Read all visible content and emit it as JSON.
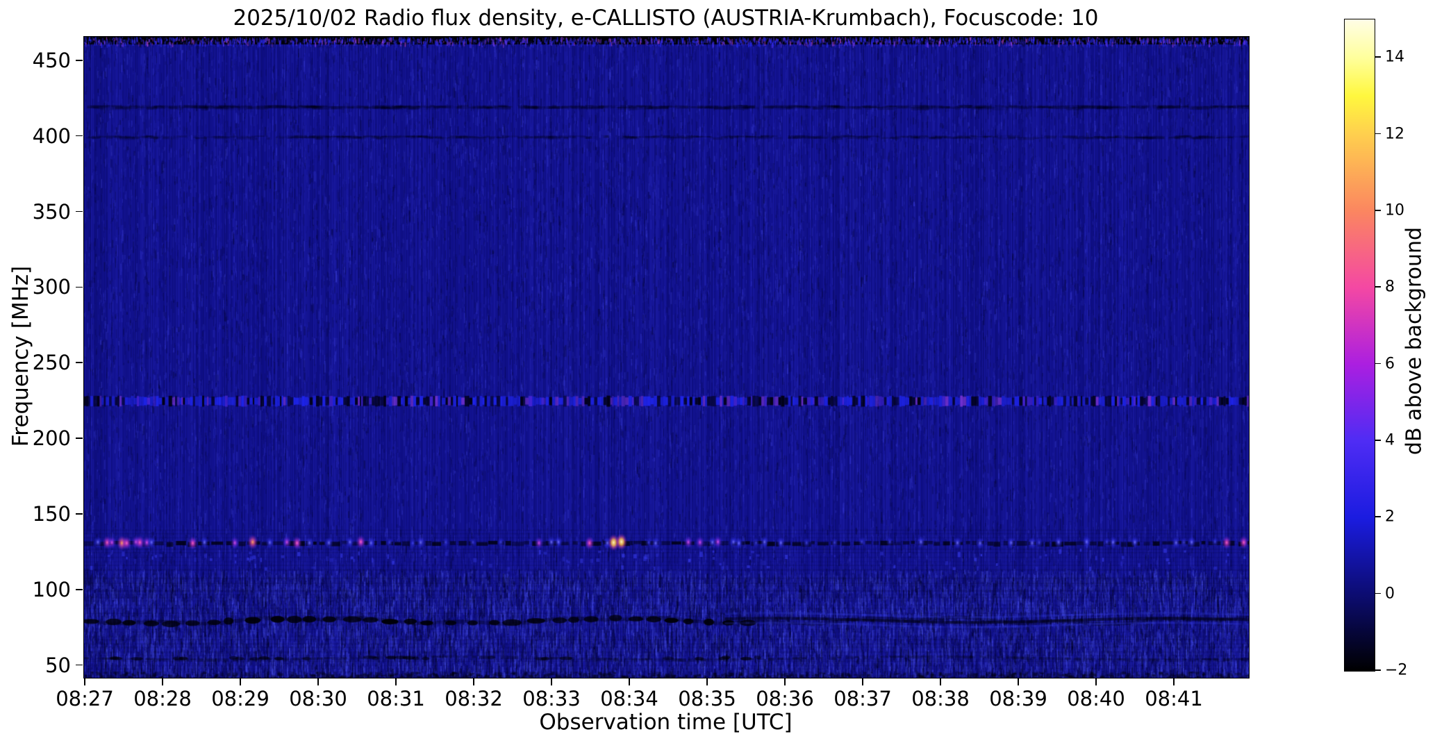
{
  "title": "2025/10/02  Radio flux density, e-CALLISTO (AUSTRIA-Krumbach), Focuscode: 10",
  "chart_data": {
    "type": "heatmap",
    "subtype": "radio-spectrogram",
    "title": "2025/10/02  Radio flux density, e-CALLISTO (AUSTRIA-Krumbach), Focuscode: 10",
    "xlabel": "Observation time [UTC]",
    "ylabel": "Frequency [MHz]",
    "x_ticks": [
      "08:27",
      "08:28",
      "08:29",
      "08:30",
      "08:31",
      "08:32",
      "08:33",
      "08:34",
      "08:35",
      "08:36",
      "08:37",
      "08:38",
      "08:39",
      "08:40",
      "08:41"
    ],
    "x_start": "08:27",
    "x_end_approx": "08:42",
    "x_minutes_span": 15,
    "y_ticks": [
      450,
      400,
      350,
      300,
      250,
      200,
      150,
      100,
      50
    ],
    "ylim": [
      42,
      466
    ],
    "grid": false,
    "legend": "none",
    "background_db_estimate": 0.3,
    "background_color": "#11118f",
    "colorbar": {
      "label": "dB above background",
      "min": -2,
      "max": 15,
      "ticks": [
        {
          "v": 14,
          "label": "14"
        },
        {
          "v": 12,
          "label": "12"
        },
        {
          "v": 10,
          "label": "10"
        },
        {
          "v": 8,
          "label": "8"
        },
        {
          "v": 6,
          "label": "6"
        },
        {
          "v": 4,
          "label": "4"
        },
        {
          "v": 2,
          "label": "2"
        },
        {
          "v": 0,
          "label": "0"
        },
        {
          "v": -2,
          "label": "−2"
        }
      ],
      "gradient_stops": [
        {
          "v": 15,
          "c": "#fffde6"
        },
        {
          "v": 14,
          "c": "#ffff9c"
        },
        {
          "v": 13,
          "c": "#fff73e"
        },
        {
          "v": 12,
          "c": "#ffcf4e"
        },
        {
          "v": 10,
          "c": "#fb8660"
        },
        {
          "v": 8,
          "c": "#f448a3"
        },
        {
          "v": 6,
          "c": "#ab1fe0"
        },
        {
          "v": 4,
          "c": "#4f2cf4"
        },
        {
          "v": 2,
          "c": "#1b1ce0"
        },
        {
          "v": 0,
          "c": "#0c0c72"
        },
        {
          "v": -2,
          "c": "#000000"
        }
      ]
    },
    "bands": [
      {
        "name": "top-edge-rfi",
        "freq_range": [
          461,
          466
        ],
        "style": "black-speckle",
        "description": "dark speckled strip with blue/magenta flecks at top edge"
      },
      {
        "name": "rfi-420",
        "freq_range": [
          418,
          422
        ],
        "style": "faint-dark",
        "description": "very faint darker trace near 420 MHz"
      },
      {
        "name": "rfi-400",
        "freq_range": [
          399,
          401
        ],
        "style": "faint-dark",
        "description": "very faint darker trace near 400 MHz"
      },
      {
        "name": "rfi-225",
        "freq_range": [
          221.5,
          228.5
        ],
        "style": "stripe-flicker",
        "description": "flickering channel: alternating black/bright-blue vertical stripes, occasional violet"
      },
      {
        "name": "emission-132",
        "freq_range": [
          129,
          134
        ],
        "style": "bright-blobs-on-dark-line",
        "description": "dark absorption-like line with intermittent bright bursts (blue/magenta/orange, two yellow-white peaks near 08:34)"
      },
      {
        "name": "noisy-low",
        "freq_range": [
          42,
          114
        ],
        "style": "texture-strong",
        "description": "stronger streaky noise texture below ~110 MHz"
      },
      {
        "name": "fm-dark-80",
        "freq_range": [
          77,
          83
        ],
        "style": "dark-wavy-blobs",
        "description": "wavy dark band ~80 MHz: black blobs on left, smoother dark line with blue halo on right"
      },
      {
        "name": "dark-55",
        "freq_range": [
          53,
          57
        ],
        "style": "faint-dark-dashed",
        "description": "faint broken dark band near 55 MHz"
      },
      {
        "name": "bottom-edge",
        "freq_range": [
          42,
          46
        ],
        "style": "dark-texture",
        "description": "darker speckled bottom rows"
      }
    ],
    "bright_points_note": "bursts on the 132 MHz line; t = minutes after 08:27, level 1=faint blue .. 6=yellow-white (~14 dB)",
    "bright_points": [
      [
        0.16,
        2
      ],
      [
        0.28,
        4
      ],
      [
        0.34,
        3
      ],
      [
        0.47,
        5
      ],
      [
        0.53,
        4
      ],
      [
        0.65,
        3
      ],
      [
        0.7,
        4
      ],
      [
        0.79,
        3
      ],
      [
        0.85,
        2
      ],
      [
        1.38,
        4
      ],
      [
        1.53,
        2
      ],
      [
        1.92,
        3
      ],
      [
        2.15,
        5
      ],
      [
        2.37,
        2
      ],
      [
        2.59,
        3
      ],
      [
        2.72,
        4
      ],
      [
        2.88,
        2
      ],
      [
        3.13,
        2
      ],
      [
        3.4,
        2
      ],
      [
        3.54,
        4
      ],
      [
        3.67,
        2
      ],
      [
        3.91,
        1
      ],
      [
        4.21,
        1
      ],
      [
        4.31,
        2
      ],
      [
        4.63,
        1
      ],
      [
        4.98,
        1
      ],
      [
        5.34,
        1
      ],
      [
        5.83,
        3
      ],
      [
        5.99,
        2
      ],
      [
        6.08,
        2
      ],
      [
        6.48,
        4
      ],
      [
        6.71,
        2
      ],
      [
        6.79,
        6
      ],
      [
        6.89,
        6
      ],
      [
        7.24,
        1
      ],
      [
        7.33,
        2
      ],
      [
        7.75,
        3
      ],
      [
        7.9,
        3
      ],
      [
        8.06,
        2
      ],
      [
        8.13,
        3
      ],
      [
        8.33,
        2
      ],
      [
        8.4,
        2
      ],
      [
        8.62,
        1
      ],
      [
        8.73,
        2
      ],
      [
        8.94,
        2
      ],
      [
        9.27,
        1
      ],
      [
        9.63,
        1
      ],
      [
        9.98,
        1
      ],
      [
        10.34,
        1
      ],
      [
        10.74,
        2
      ],
      [
        11.21,
        2
      ],
      [
        11.5,
        2
      ],
      [
        11.9,
        2
      ],
      [
        12.17,
        2
      ],
      [
        12.26,
        1
      ],
      [
        12.51,
        2
      ],
      [
        12.87,
        2
      ],
      [
        13.13,
        1
      ],
      [
        13.21,
        2
      ],
      [
        13.49,
        2
      ],
      [
        14.02,
        2
      ],
      [
        14.12,
        1
      ],
      [
        14.22,
        2
      ],
      [
        14.52,
        1
      ],
      [
        14.67,
        4
      ],
      [
        14.89,
        4
      ]
    ]
  }
}
